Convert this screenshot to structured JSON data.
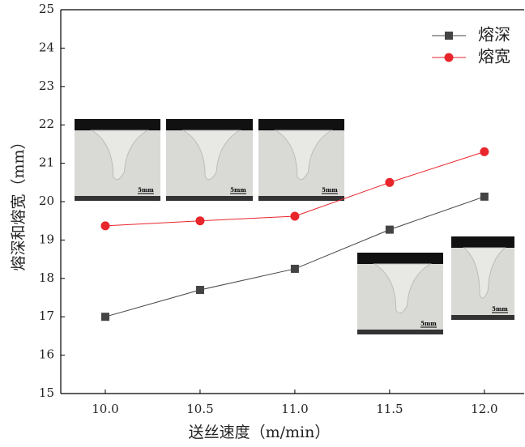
{
  "chart_data": {
    "type": "line",
    "y_label": "熔深和熔宽（mm）",
    "x_label": "送丝速度（m/min）",
    "x": [
      10.0,
      10.5,
      11.0,
      11.5,
      12.0
    ],
    "series": [
      {
        "name": "熔深",
        "color": "#444444",
        "marker": "square",
        "values": [
          17.0,
          17.7,
          18.25,
          19.27,
          20.13
        ]
      },
      {
        "name": "熔宽",
        "color": "#e8262c",
        "marker": "circle",
        "values": [
          19.37,
          19.5,
          19.62,
          20.5,
          21.3
        ]
      }
    ],
    "xlim": [
      9.765,
      12.21
    ],
    "ylim": [
      15,
      25
    ],
    "xticks": [
      {
        "value": 10.0,
        "label": "10.0"
      },
      {
        "value": 10.5,
        "label": "10.5"
      },
      {
        "value": 11.0,
        "label": "11.0"
      },
      {
        "value": 11.5,
        "label": "11.5"
      },
      {
        "value": 12.0,
        "label": "12.0"
      }
    ],
    "yticks": [
      15,
      16,
      17,
      18,
      19,
      20,
      21,
      22,
      23,
      24,
      25
    ],
    "legend": "upper right",
    "image_scale_labels": [
      "5mm",
      "5mm",
      "5mm",
      "5mm",
      "5mm"
    ]
  }
}
